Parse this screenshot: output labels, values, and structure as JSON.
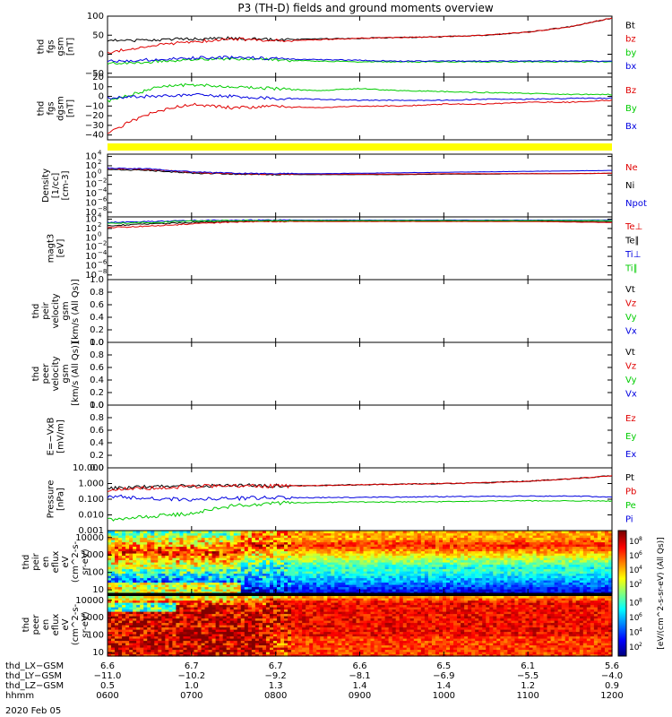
{
  "title": "P3 (TH-D) fields and ground moments overview",
  "date_label": "2020 Feb 05",
  "colors": {
    "black": "#000000",
    "red": "#e00000",
    "green": "#00cc00",
    "blue": "#0000e0",
    "yellow": "#ffff00"
  },
  "chart_data": [
    {
      "type": "line",
      "id": "p1",
      "ylabel": [
        "thd",
        "fgs",
        "gsm",
        "[nT]"
      ],
      "yticks": [
        "100",
        "50",
        "0",
        "−50"
      ],
      "ylim": [
        -60,
        100
      ],
      "legend": [
        "Bt",
        "bz",
        "by",
        "bx"
      ],
      "series": [
        {
          "name": "Bt",
          "color": "#000000",
          "x": [
            6,
            6.5,
            7,
            7.5,
            8,
            8.5,
            9,
            9.5,
            10,
            10.5,
            11,
            11.5,
            12
          ],
          "values": [
            35,
            38,
            40,
            42,
            38,
            40,
            42,
            44,
            46,
            50,
            58,
            72,
            95
          ]
        },
        {
          "name": "bz",
          "color": "#e00000",
          "x": [
            6,
            6.5,
            7,
            7.5,
            8,
            8.5,
            9,
            9.5,
            10,
            10.5,
            11,
            11.5,
            12
          ],
          "values": [
            5,
            22,
            33,
            40,
            36,
            38,
            42,
            44,
            46,
            50,
            58,
            72,
            95
          ]
        },
        {
          "name": "by",
          "color": "#00cc00",
          "x": [
            6,
            6.5,
            7,
            7.5,
            8,
            8.5,
            9,
            9.5,
            10,
            10.5,
            11,
            11.5,
            12
          ],
          "values": [
            -25,
            -20,
            -15,
            -12,
            -15,
            -18,
            -20,
            -20,
            -20,
            -20,
            -20,
            -20,
            -20
          ]
        },
        {
          "name": "bx",
          "color": "#0000e0",
          "x": [
            6,
            6.5,
            7,
            7.5,
            8,
            8.5,
            9,
            9.5,
            10,
            10.5,
            11,
            11.5,
            12
          ],
          "values": [
            -18,
            -15,
            -10,
            -8,
            -12,
            -14,
            -16,
            -18,
            -18,
            -18,
            -18,
            -18,
            -18
          ]
        }
      ]
    },
    {
      "type": "line",
      "id": "p2",
      "ylabel": [
        "thd",
        "fgs",
        "dgsm",
        "[nT]"
      ],
      "yticks": [
        "20",
        "10",
        "0",
        "−10",
        "−20",
        "−30",
        "−40"
      ],
      "ylim": [
        -45,
        20
      ],
      "legend": [
        "Bz",
        "By",
        "Bx"
      ],
      "series": [
        {
          "name": "Bz",
          "color": "#e00000",
          "x": [
            6,
            6.3,
            6.6,
            7,
            7.5,
            8,
            8.5,
            9,
            9.5,
            10,
            10.5,
            11,
            11.5,
            12
          ],
          "values": [
            -38,
            -25,
            -15,
            -8,
            -12,
            -10,
            -12,
            -10,
            -10,
            -8,
            -8,
            -6,
            -6,
            -4
          ]
        },
        {
          "name": "By",
          "color": "#00cc00",
          "x": [
            6,
            6.3,
            6.6,
            7,
            7.5,
            8,
            8.5,
            9,
            9.5,
            10,
            10.5,
            11,
            11.5,
            12
          ],
          "values": [
            -5,
            2,
            10,
            12,
            10,
            8,
            6,
            8,
            6,
            5,
            4,
            3,
            2,
            2
          ]
        },
        {
          "name": "Bx",
          "color": "#0000e0",
          "x": [
            6,
            6.3,
            6.6,
            7,
            7.5,
            8,
            8.5,
            9,
            9.5,
            10,
            10.5,
            11,
            11.5,
            12
          ],
          "values": [
            -2,
            0,
            0,
            2,
            0,
            -2,
            -3,
            -4,
            -4,
            -4,
            -3,
            -3,
            -2,
            -2
          ]
        }
      ]
    },
    {
      "type": "bar",
      "id": "pbar",
      "legend": []
    },
    {
      "type": "line",
      "id": "p3",
      "scale": "log",
      "ylabel": [
        "Density",
        "[1/cc]",
        "[cm-3]"
      ],
      "ytick_exps": [
        "4",
        "2",
        "0",
        "−2",
        "−4",
        "−6",
        "−8"
      ],
      "ylim_exp": [
        -9,
        4.5
      ],
      "legend": [
        "Ne",
        "Ni",
        "Npot"
      ],
      "series": [
        {
          "name": "Ni",
          "color": "#000000",
          "x": [
            6,
            6.5,
            7,
            7.5,
            8,
            8.5,
            9,
            9.5,
            10,
            10.5,
            11,
            11.5,
            12
          ],
          "log_values": [
            1.2,
            1.0,
            0.4,
            0.2,
            0.1,
            0.1,
            0.1,
            0.1,
            0.2,
            0.2,
            0.3,
            0.3,
            0.4
          ]
        },
        {
          "name": "Ne",
          "color": "#e00000",
          "x": [
            6,
            6.5,
            7,
            7.5,
            8,
            8.5,
            9,
            9.5,
            10,
            10.5,
            11,
            11.5,
            12
          ],
          "log_values": [
            1.4,
            1.2,
            0.6,
            0.3,
            0.2,
            0.2,
            0.2,
            0.2,
            0.3,
            0.3,
            0.3,
            0.3,
            0.4
          ]
        },
        {
          "name": "Npot",
          "color": "#0000e0",
          "x": [
            6,
            6.5,
            7,
            7.5,
            8,
            8.5,
            9,
            9.5,
            10,
            10.5,
            11,
            11.5,
            12
          ],
          "log_values": [
            1.5,
            1.3,
            0.7,
            0.4,
            0.3,
            0.3,
            0.4,
            0.5,
            0.6,
            0.7,
            0.8,
            0.9,
            1.0
          ]
        }
      ]
    },
    {
      "type": "line",
      "id": "p4",
      "scale": "log",
      "ylabel": [
        "magt3",
        "[eV]"
      ],
      "ytick_exps": [
        "4",
        "2",
        "0",
        "−2",
        "−4",
        "−6",
        "−8"
      ],
      "ylim_exp": [
        -9,
        4.5
      ],
      "legend": [
        "Te⊥",
        "Te∥",
        "Ti⊥",
        "Ti∥"
      ],
      "series": [
        {
          "name": "Te∥",
          "color": "#000000",
          "x": [
            6,
            6.5,
            7,
            7.5,
            8,
            8.5,
            9,
            9.5,
            10,
            10.5,
            11,
            11.5,
            12
          ],
          "log_values": [
            2.6,
            3.0,
            3.3,
            3.5,
            3.6,
            3.6,
            3.6,
            3.6,
            3.6,
            3.6,
            3.6,
            3.5,
            3.4
          ]
        },
        {
          "name": "Te⊥",
          "color": "#e00000",
          "x": [
            6,
            6.5,
            7,
            7.5,
            8,
            8.5,
            9,
            9.5,
            10,
            10.5,
            11,
            11.5,
            12
          ],
          "log_values": [
            2.2,
            2.5,
            3.0,
            3.4,
            3.5,
            3.5,
            3.5,
            3.5,
            3.5,
            3.5,
            3.5,
            3.4,
            3.3
          ]
        },
        {
          "name": "Ti⊥",
          "color": "#0000e0",
          "x": [
            6,
            6.5,
            7,
            7.5,
            8,
            8.5,
            9,
            9.5,
            10,
            10.5,
            11,
            11.5,
            12
          ],
          "log_values": [
            3.3,
            3.5,
            3.7,
            3.8,
            3.8,
            3.8,
            3.8,
            3.8,
            3.8,
            3.8,
            3.8,
            3.8,
            3.8
          ]
        },
        {
          "name": "Ti∥",
          "color": "#00cc00",
          "x": [
            6,
            6.5,
            7,
            7.5,
            8,
            8.5,
            9,
            9.5,
            10,
            10.5,
            11,
            11.5,
            12
          ],
          "log_values": [
            3.1,
            3.3,
            3.6,
            3.7,
            3.7,
            3.7,
            3.7,
            3.7,
            3.7,
            3.7,
            3.7,
            3.7,
            3.7
          ]
        }
      ]
    },
    {
      "type": "line",
      "id": "p5",
      "ylabel": [
        "thd",
        "peir",
        "velocity",
        "gsm",
        "[km/s (All Qs)]"
      ],
      "yticks": [
        "1.0",
        "0.8",
        "0.6",
        "0.4",
        "0.2",
        "0.0"
      ],
      "ylim": [
        0,
        1
      ],
      "legend": [
        "Vt",
        "Vz",
        "Vy",
        "Vx"
      ],
      "series": []
    },
    {
      "type": "line",
      "id": "p6",
      "ylabel": [
        "thd",
        "peer",
        "velocity",
        "gsm",
        "[km/s (All Qs)]"
      ],
      "yticks": [
        "1.0",
        "0.8",
        "0.6",
        "0.4",
        "0.2",
        "0.0"
      ],
      "ylim": [
        0,
        1
      ],
      "legend": [
        "Vt",
        "Vz",
        "Vy",
        "Vx"
      ],
      "series": []
    },
    {
      "type": "line",
      "id": "p7",
      "ylabel": [
        "E=−VxB",
        "[mV/m]"
      ],
      "yticks": [
        "1.0",
        "0.8",
        "0.6",
        "0.4",
        "0.2",
        "0.0"
      ],
      "ylim": [
        0,
        1
      ],
      "legend": [
        "Ez",
        "Ey",
        "Ex"
      ],
      "series": []
    },
    {
      "type": "line",
      "id": "p8",
      "scale": "log",
      "ylabel": [
        "Pressure",
        "[nPa]"
      ],
      "yticks": [
        "10.000",
        "1.000",
        "0.100",
        "0.010",
        "0.001"
      ],
      "ylim_exp": [
        -3,
        1
      ],
      "legend": [
        "Pt",
        "Pb",
        "Pe",
        "Pi"
      ],
      "series": [
        {
          "name": "Pt",
          "color": "#000000",
          "x": [
            6,
            6.5,
            7,
            7.5,
            8,
            8.5,
            9,
            9.5,
            10,
            10.5,
            11,
            11.5,
            12
          ],
          "log_values": [
            -0.3,
            -0.22,
            -0.15,
            -0.12,
            -0.15,
            -0.12,
            -0.08,
            -0.04,
            0,
            0.05,
            0.15,
            0.3,
            0.5
          ]
        },
        {
          "name": "Pb",
          "color": "#e00000",
          "x": [
            6,
            6.5,
            7,
            7.5,
            8,
            8.5,
            9,
            9.5,
            10,
            10.5,
            11,
            11.5,
            12
          ],
          "log_values": [
            -0.4,
            -0.28,
            -0.18,
            -0.14,
            -0.17,
            -0.13,
            -0.08,
            -0.04,
            0,
            0.05,
            0.15,
            0.3,
            0.5
          ]
        },
        {
          "name": "Pe",
          "color": "#00cc00",
          "x": [
            6,
            6.5,
            7,
            7.5,
            8,
            8.5,
            9,
            9.5,
            10,
            10.5,
            11,
            11.5,
            12
          ],
          "log_values": [
            -2.3,
            -2.1,
            -1.9,
            -1.4,
            -1.25,
            -1.2,
            -1.18,
            -1.18,
            -1.15,
            -1.12,
            -1.1,
            -1.1,
            -1.12
          ]
        },
        {
          "name": "Pi",
          "color": "#0000e0",
          "x": [
            6,
            6.5,
            7,
            7.5,
            8,
            8.5,
            9,
            9.5,
            10,
            10.5,
            11,
            11.5,
            12
          ],
          "log_values": [
            -0.8,
            -0.95,
            -1.0,
            -0.95,
            -0.9,
            -0.9,
            -0.88,
            -0.86,
            -0.84,
            -0.82,
            -0.8,
            -0.8,
            -0.85
          ]
        }
      ]
    },
    {
      "type": "heatmap",
      "id": "p9",
      "ylabel": [
        "thd",
        "peir",
        "en",
        "eflux",
        "eV",
        "(cm^2-s-",
        "sr-eV)"
      ],
      "yticks": [
        "10000",
        "1000",
        "100",
        "10"
      ],
      "energy_exp_range": [
        0.8,
        4.4
      ],
      "noise_seed": 101
    },
    {
      "type": "heatmap",
      "id": "p10",
      "ylabel": [
        "thd",
        "peer",
        "en",
        "eflux",
        "eV",
        "(cm^2-s-",
        "sr-eV)"
      ],
      "yticks": [
        "10000",
        "1000",
        "100",
        "10"
      ],
      "energy_exp_range": [
        0.8,
        4.4
      ],
      "noise_seed": 202
    }
  ],
  "colorbar": {
    "tick_exps": [
      "8",
      "6",
      "4",
      "2"
    ],
    "label": "[eV/(cm^2-s-sr-eV) (All Qs)]"
  },
  "xaxis": {
    "rows": [
      {
        "label": "thd_LX−GSM",
        "values": [
          "6.6",
          "6.7",
          "6.7",
          "6.6",
          "6.5",
          "6.1",
          "5.6"
        ]
      },
      {
        "label": "thd_LY−GSM",
        "values": [
          "−11.0",
          "−10.2",
          "−9.2",
          "−8.1",
          "−6.9",
          "−5.5",
          "−4.0"
        ]
      },
      {
        "label": "thd_LZ−GSM",
        "values": [
          "0.5",
          "1.0",
          "1.3",
          "1.4",
          "1.4",
          "1.2",
          "0.9"
        ]
      },
      {
        "label": "hhmm",
        "values": [
          "0600",
          "0700",
          "0800",
          "0900",
          "1000",
          "1100",
          "1200"
        ]
      }
    ],
    "hours": [
      6,
      7,
      8,
      9,
      10,
      11,
      12
    ]
  }
}
